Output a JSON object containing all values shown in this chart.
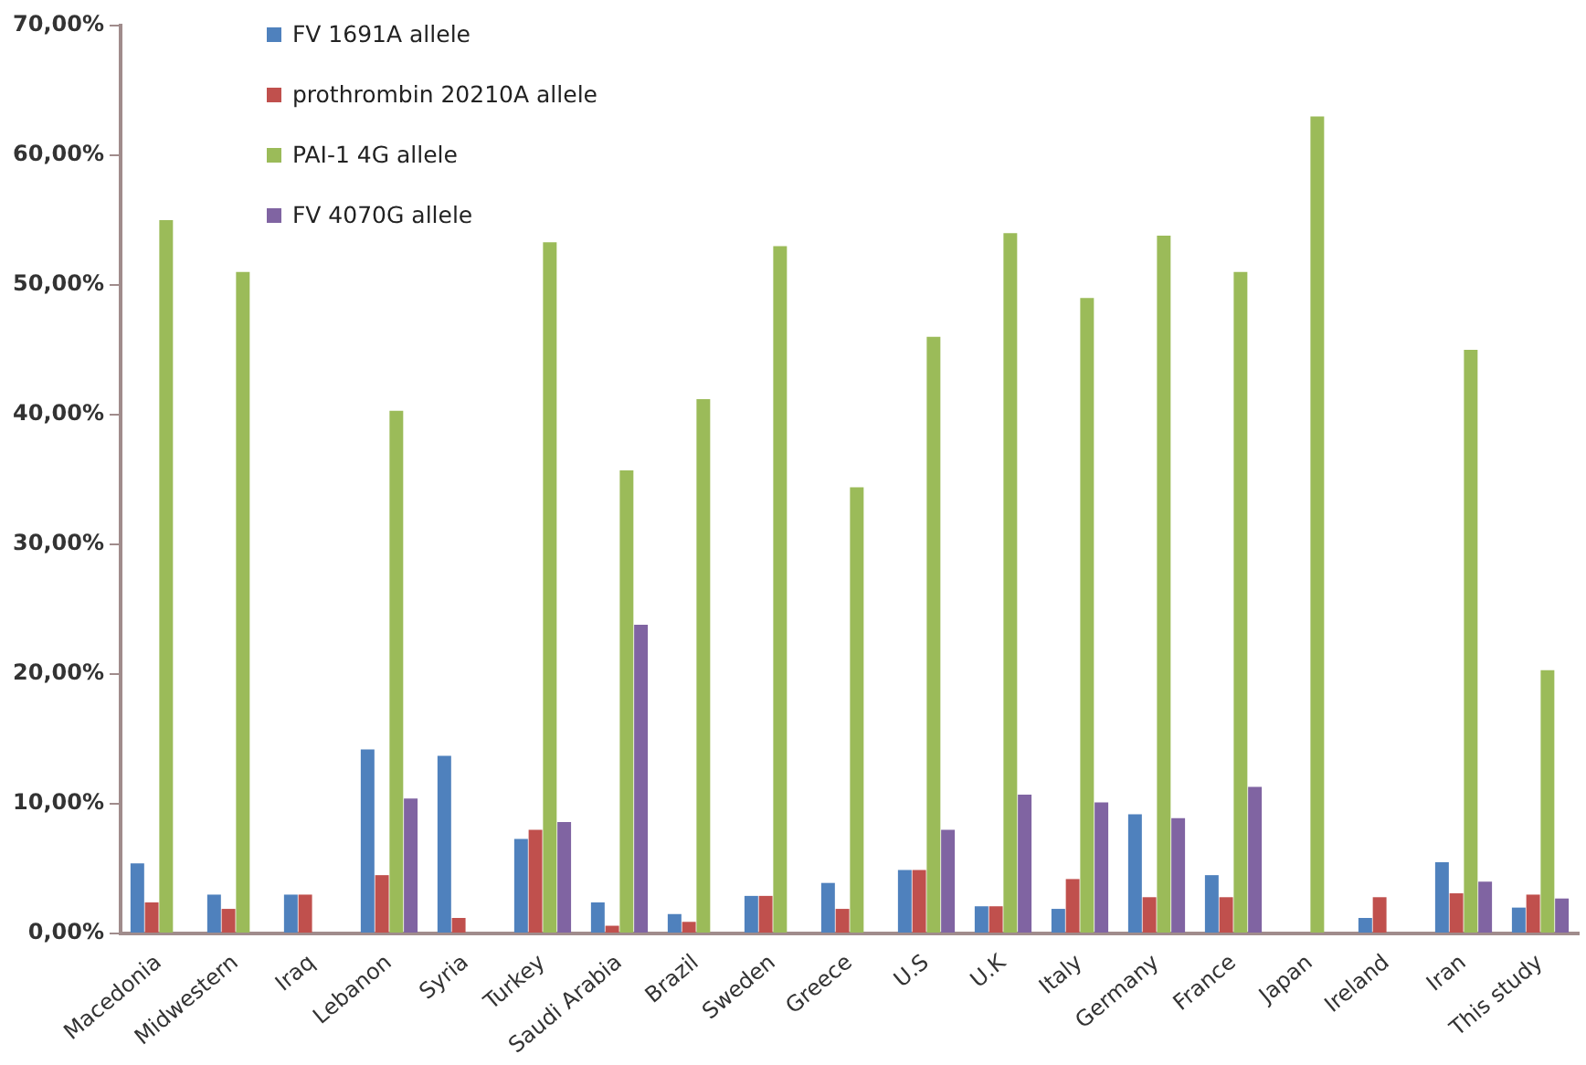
{
  "chart_data": {
    "type": "bar",
    "categories": [
      "Macedonia",
      "Midwestern",
      "Iraq",
      "Lebanon",
      "Syria",
      "Turkey",
      "Saudi Arabia",
      "Brazil",
      "Sweden",
      "Greece",
      "U.S",
      "U.K",
      "Italy",
      "Germany",
      "France",
      "Japan",
      "Ireland",
      "Iran",
      "This study"
    ],
    "series": [
      {
        "name": "FV 1691A allele",
        "color": "#4f81bd",
        "values": [
          5.4,
          3.0,
          3.0,
          14.2,
          13.7,
          7.3,
          2.4,
          1.5,
          2.9,
          3.9,
          4.9,
          2.1,
          1.9,
          9.2,
          4.5,
          null,
          1.2,
          5.5,
          2.0
        ]
      },
      {
        "name": "prothrombin 20210A allele",
        "color": "#c0504d",
        "values": [
          2.4,
          1.9,
          3.0,
          4.5,
          1.2,
          8.0,
          0.6,
          0.9,
          2.9,
          1.9,
          4.9,
          2.1,
          4.2,
          2.8,
          2.8,
          null,
          2.8,
          3.1,
          3.0
        ]
      },
      {
        "name": "PAI-1 4G allele",
        "color": "#9bbb59",
        "values": [
          55,
          51,
          null,
          40.3,
          null,
          53.3,
          35.7,
          41.2,
          53,
          34.4,
          46,
          54,
          49,
          53.8,
          51,
          63,
          null,
          45,
          20.3
        ]
      },
      {
        "name": "FV 4070G allele",
        "color": "#8064a2",
        "values": [
          null,
          null,
          null,
          10.4,
          null,
          8.6,
          23.8,
          null,
          null,
          null,
          8.0,
          10.7,
          10.1,
          8.9,
          11.3,
          null,
          null,
          4.0,
          2.7
        ]
      }
    ],
    "ylim": [
      0,
      70
    ],
    "yticks": [
      {
        "value": 0,
        "label": "0,00%"
      },
      {
        "value": 10,
        "label": "10,00%"
      },
      {
        "value": 20,
        "label": "20,00%"
      },
      {
        "value": 30,
        "label": "30,00%"
      },
      {
        "value": 40,
        "label": "40,00%"
      },
      {
        "value": 50,
        "label": "50,00%"
      },
      {
        "value": 60,
        "label": "60,00%"
      },
      {
        "value": 70,
        "label": "70,00%"
      }
    ],
    "grid": false,
    "legend": "top left"
  }
}
